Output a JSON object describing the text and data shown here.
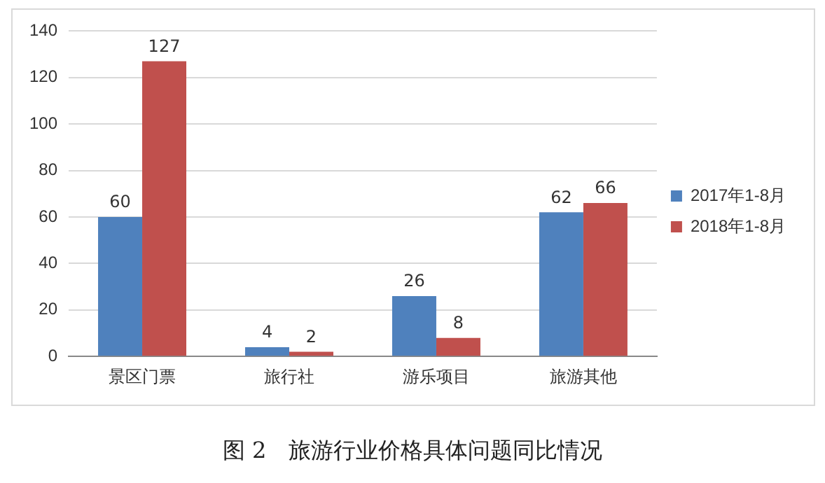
{
  "chart_data": {
    "type": "bar",
    "categories": [
      "景区门票",
      "旅行社",
      "游乐项目",
      "旅游其他"
    ],
    "series": [
      {
        "name": "2017年1-8月",
        "color": "#4f81bd",
        "values": [
          60,
          4,
          26,
          62
        ]
      },
      {
        "name": "2018年1-8月",
        "color": "#c0504d",
        "values": [
          127,
          2,
          8,
          66
        ]
      }
    ],
    "ylim": [
      0,
      140
    ],
    "yticks": [
      0,
      20,
      40,
      60,
      80,
      100,
      120,
      140
    ],
    "grid": "y",
    "legend": "right",
    "data_labels": true,
    "annotations": [
      "图 2　旅游行业价格具体问题同比情况"
    ]
  }
}
